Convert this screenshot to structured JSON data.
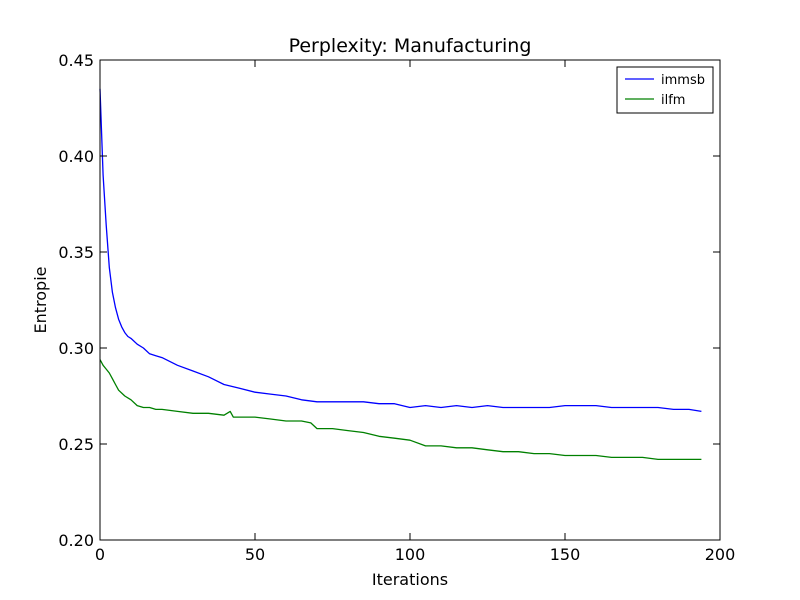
{
  "chart_data": {
    "type": "line",
    "title": "Perplexity: Manufacturing",
    "xlabel": "Iterations",
    "ylabel": "Entropie",
    "xlim": [
      0,
      200
    ],
    "ylim": [
      0.2,
      0.45
    ],
    "xticks": [
      0,
      50,
      100,
      150,
      200
    ],
    "xtick_labels": [
      "0",
      "50",
      "100",
      "150",
      "200"
    ],
    "yticks": [
      0.2,
      0.25,
      0.3,
      0.35,
      0.4,
      0.45
    ],
    "ytick_labels": [
      "0.20",
      "0.25",
      "0.30",
      "0.35",
      "0.40",
      "0.45"
    ],
    "grid": false,
    "legend": "top-right",
    "series": [
      {
        "name": "immsb",
        "color": "#0000ff",
        "x": [
          0,
          1,
          2,
          3,
          4,
          5,
          6,
          7,
          8,
          9,
          10,
          12,
          14,
          16,
          18,
          20,
          25,
          30,
          35,
          40,
          45,
          50,
          55,
          60,
          65,
          70,
          75,
          80,
          85,
          90,
          95,
          100,
          105,
          110,
          115,
          120,
          125,
          130,
          135,
          140,
          145,
          150,
          155,
          160,
          165,
          170,
          175,
          180,
          185,
          190,
          194
        ],
        "y": [
          0.435,
          0.39,
          0.364,
          0.342,
          0.329,
          0.321,
          0.315,
          0.311,
          0.308,
          0.306,
          0.305,
          0.302,
          0.3,
          0.297,
          0.296,
          0.295,
          0.291,
          0.288,
          0.285,
          0.281,
          0.279,
          0.277,
          0.276,
          0.275,
          0.273,
          0.272,
          0.272,
          0.272,
          0.272,
          0.271,
          0.271,
          0.269,
          0.27,
          0.269,
          0.27,
          0.269,
          0.27,
          0.269,
          0.269,
          0.269,
          0.269,
          0.27,
          0.27,
          0.27,
          0.269,
          0.269,
          0.269,
          0.269,
          0.268,
          0.268,
          0.267
        ]
      },
      {
        "name": "ilfm",
        "color": "#008000",
        "x": [
          0,
          1,
          2,
          3,
          4,
          5,
          6,
          8,
          10,
          12,
          14,
          16,
          18,
          20,
          25,
          30,
          35,
          40,
          42,
          43,
          45,
          50,
          55,
          60,
          65,
          68,
          70,
          75,
          80,
          85,
          90,
          95,
          100,
          105,
          110,
          115,
          120,
          125,
          130,
          135,
          140,
          145,
          150,
          155,
          160,
          165,
          170,
          175,
          180,
          185,
          190,
          194
        ],
        "y": [
          0.294,
          0.291,
          0.289,
          0.287,
          0.284,
          0.281,
          0.278,
          0.275,
          0.273,
          0.27,
          0.269,
          0.269,
          0.268,
          0.268,
          0.267,
          0.266,
          0.266,
          0.265,
          0.267,
          0.264,
          0.264,
          0.264,
          0.263,
          0.262,
          0.262,
          0.261,
          0.258,
          0.258,
          0.257,
          0.256,
          0.254,
          0.253,
          0.252,
          0.249,
          0.249,
          0.248,
          0.248,
          0.247,
          0.246,
          0.246,
          0.245,
          0.245,
          0.244,
          0.244,
          0.244,
          0.243,
          0.243,
          0.243,
          0.242,
          0.242,
          0.242,
          0.242
        ]
      }
    ]
  }
}
